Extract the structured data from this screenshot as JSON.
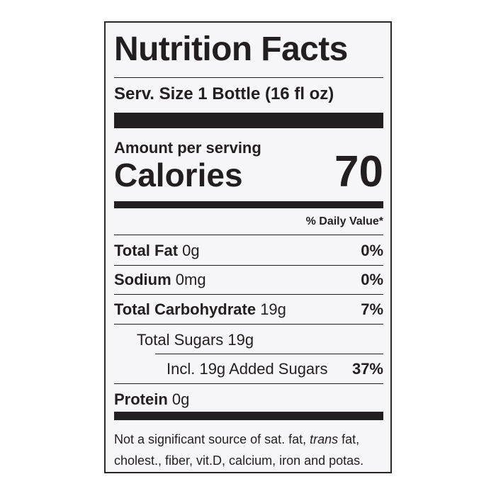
{
  "title": "Nutrition Facts",
  "serving_size": "Serv. Size 1 Bottle (16 fl oz)",
  "amount_per_serving": "Amount per serving",
  "calories": {
    "label": "Calories",
    "value": "70"
  },
  "daily_value_header": "% Daily Value*",
  "total_fat": {
    "name": "Total Fat",
    "amount": "0g",
    "dv": "0%"
  },
  "sodium": {
    "name": "Sodium",
    "amount": "0mg",
    "dv": "0%"
  },
  "total_carbohydrate": {
    "name": "Total Carbohydrate",
    "amount": "19g",
    "dv": "7%"
  },
  "total_sugars": "Total Sugars 19g",
  "added_sugars": {
    "text": "Incl. 19g Added Sugars",
    "dv": "37%"
  },
  "protein": {
    "name": "Protein",
    "amount": "0g"
  },
  "footnote": {
    "line1": [
      "Not a significant source of sat. fat, ",
      "trans",
      " fat,"
    ],
    "line2": "cholest., fiber, vit.D, calcium, iron and potas."
  }
}
